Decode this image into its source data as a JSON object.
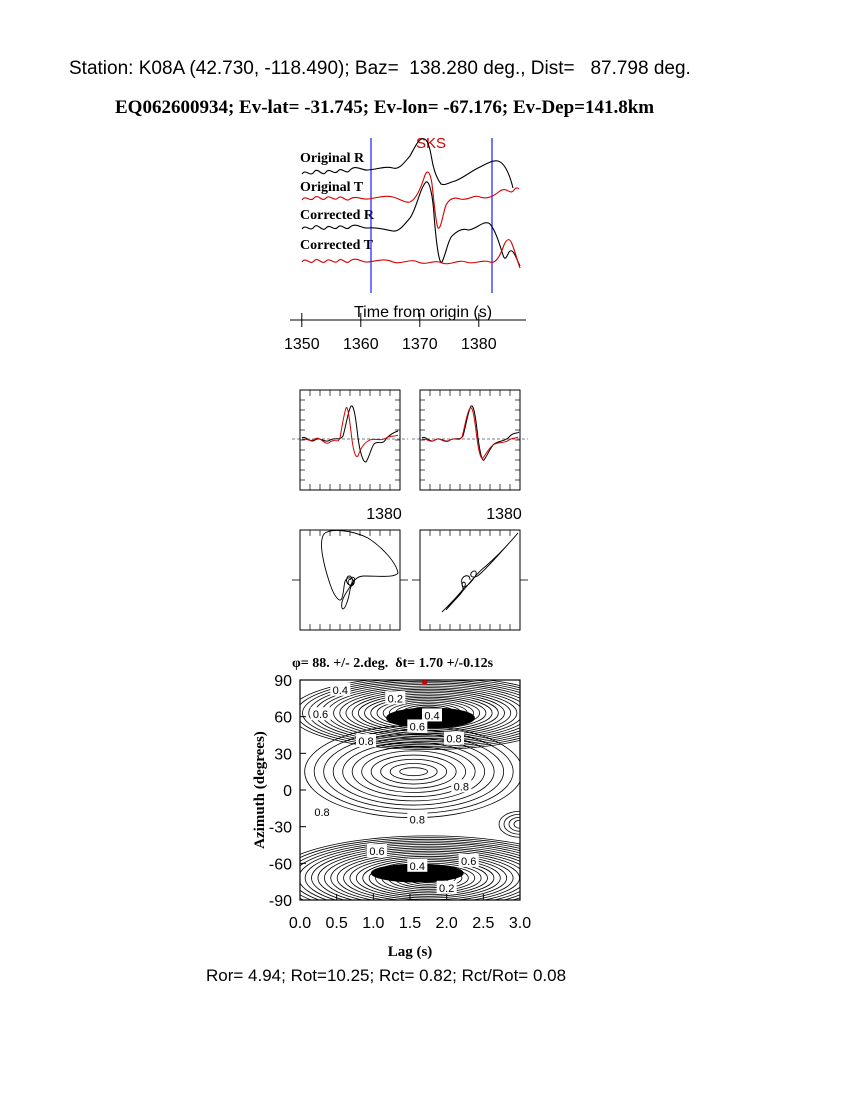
{
  "header": {
    "station_line": "Station: K08A (42.730, -118.490); Baz=  138.280 deg., Dist=   87.798 deg.",
    "event_line": "EQ062600934; Ev-lat= -31.745; Ev-lon= -67.176; Ev-Dep=141.8km"
  },
  "colors": {
    "black": "#000000",
    "red": "#d40000",
    "blue": "#1a1aff"
  },
  "chart_data": [
    {
      "type": "line",
      "name": "traces",
      "phase_label": "SKS",
      "series": [
        {
          "name": "Original R",
          "color": "#000000"
        },
        {
          "name": "Original T",
          "color": "#d40000"
        },
        {
          "name": "Corrected R",
          "color": "#000000"
        },
        {
          "name": "Corrected T",
          "color": "#d40000"
        }
      ],
      "xlabel": "Time from origin (s)",
      "xticks": [
        "1350",
        "1360",
        "1370",
        "1380"
      ],
      "xtick_values": [
        1350,
        1360,
        1370,
        1380
      ],
      "xlim": [
        1348,
        1388
      ],
      "window": [
        1361.8,
        1382.3
      ]
    },
    {
      "type": "line",
      "name": "waveform-overlays",
      "panels": [
        {
          "name": "original",
          "xticks": [
            "1380"
          ]
        },
        {
          "name": "corrected",
          "xticks": [
            "1380"
          ]
        }
      ]
    },
    {
      "type": "scatter",
      "name": "particle-motion",
      "panels": [
        {
          "name": "original"
        },
        {
          "name": "corrected"
        }
      ]
    },
    {
      "type": "heatmap",
      "name": "energy-grid",
      "title": "φ= 88. +/- 2.deg.  δt= 1.70 +/-0.12s",
      "xlabel": "Lag (s)",
      "ylabel": "Azimuth (degrees)",
      "xticks": [
        "0.0",
        "0.5",
        "1.0",
        "1.5",
        "2.0",
        "2.5",
        "3.0"
      ],
      "xtick_values": [
        0.0,
        0.5,
        1.0,
        1.5,
        2.0,
        2.5,
        3.0
      ],
      "yticks": [
        "90",
        "60",
        "30",
        "0",
        "-30",
        "-60",
        "-90"
      ],
      "ytick_values": [
        90,
        60,
        30,
        0,
        -30,
        -60,
        -90
      ],
      "xlim": [
        0.0,
        3.0
      ],
      "ylim": [
        -90,
        90
      ],
      "best": {
        "lag": 1.7,
        "azimuth": 88
      },
      "contour_labels": [
        {
          "text": "0.4",
          "lag": 0.55,
          "az": 82
        },
        {
          "text": "0.2",
          "lag": 1.3,
          "az": 75
        },
        {
          "text": "0.6",
          "lag": 0.28,
          "az": 62
        },
        {
          "text": "0.4",
          "lag": 1.8,
          "az": 61
        },
        {
          "text": "0.6",
          "lag": 1.6,
          "az": 52
        },
        {
          "text": "0.8",
          "lag": 0.9,
          "az": 40
        },
        {
          "text": "0.8",
          "lag": 2.1,
          "az": 42
        },
        {
          "text": "0.8",
          "lag": 0.3,
          "az": -18
        },
        {
          "text": "0.8",
          "lag": 1.6,
          "az": -24
        },
        {
          "text": "0.8",
          "lag": 2.2,
          "az": 3
        },
        {
          "text": "0.6",
          "lag": 1.05,
          "az": -50
        },
        {
          "text": "0.4",
          "lag": 1.6,
          "az": -62
        },
        {
          "text": "0.6",
          "lag": 2.3,
          "az": -58
        },
        {
          "text": "0.2",
          "lag": 2.0,
          "az": -80
        }
      ]
    }
  ],
  "footer": {
    "stats_line": "Ror= 4.94; Rot=10.25; Rct= 0.82; Rct/Rot= 0.08"
  }
}
